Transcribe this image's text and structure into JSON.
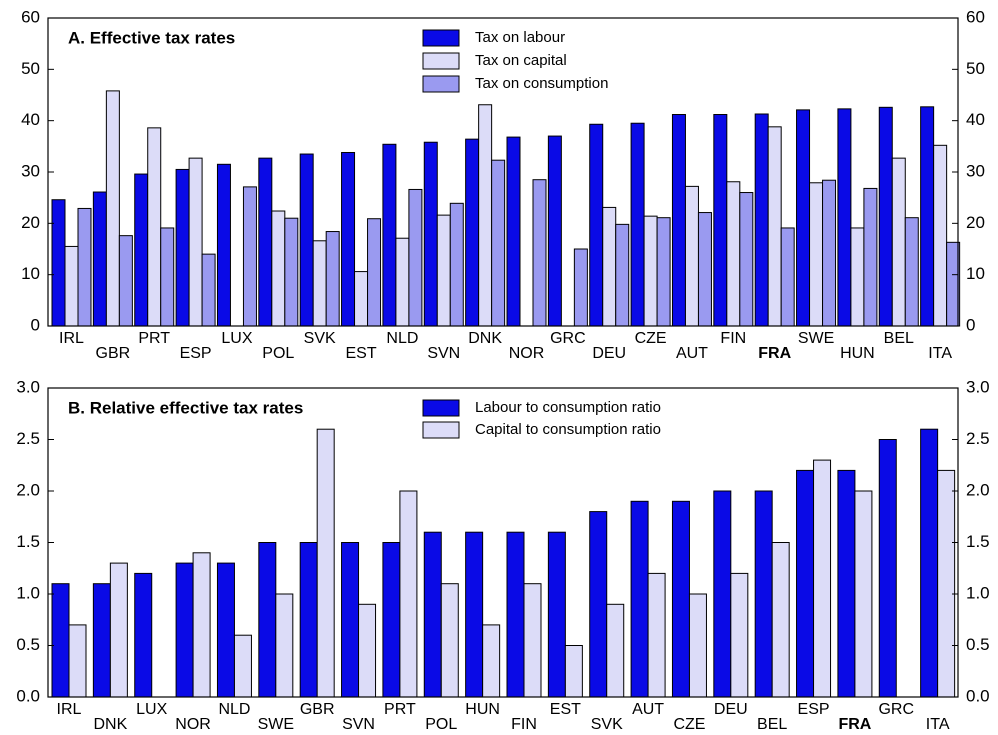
{
  "chart_data": [
    {
      "type": "bar",
      "title": "A. Effective tax rates",
      "categories": [
        "IRL",
        "GBR",
        "PRT",
        "ESP",
        "LUX",
        "POL",
        "SVK",
        "EST",
        "NLD",
        "SVN",
        "DNK",
        "NOR",
        "GRC",
        "DEU",
        "CZE",
        "AUT",
        "FIN",
        "FRA",
        "SWE",
        "HUN",
        "BEL",
        "ITA"
      ],
      "series": [
        {
          "name": "Tax on labour",
          "color": "#0a0ae6",
          "values": [
            24.6,
            26.1,
            29.6,
            30.5,
            31.5,
            32.7,
            33.5,
            33.8,
            35.4,
            35.8,
            36.4,
            36.8,
            37.0,
            39.3,
            39.5,
            41.2,
            41.2,
            41.3,
            42.1,
            42.3,
            42.6,
            42.7
          ]
        },
        {
          "name": "Tax on capital",
          "color": "#dcdcf8",
          "values": [
            15.5,
            45.8,
            38.6,
            32.7,
            null,
            22.4,
            16.6,
            10.6,
            17.1,
            21.6,
            43.1,
            null,
            null,
            23.1,
            21.4,
            27.2,
            28.1,
            38.8,
            27.9,
            19.1,
            32.7,
            35.2
          ]
        },
        {
          "name": "Tax on consumption",
          "color": "#9a9af0",
          "values": [
            22.9,
            17.6,
            19.1,
            14.0,
            27.1,
            21.0,
            18.4,
            20.9,
            26.6,
            23.9,
            32.3,
            28.5,
            15.0,
            19.8,
            21.1,
            22.1,
            26.0,
            19.1,
            28.4,
            26.8,
            21.1,
            16.3
          ]
        }
      ],
      "ylim": [
        0,
        60
      ],
      "yticks": [
        0,
        10,
        20,
        30,
        40,
        50,
        60
      ],
      "bold_categories": [
        "FRA"
      ],
      "legend": "top center",
      "grid": false
    },
    {
      "type": "bar",
      "title": "B. Relative effective tax rates",
      "categories": [
        "IRL",
        "DNK",
        "LUX",
        "NOR",
        "NLD",
        "SWE",
        "GBR",
        "SVN",
        "PRT",
        "POL",
        "HUN",
        "FIN",
        "EST",
        "SVK",
        "AUT",
        "CZE",
        "DEU",
        "BEL",
        "ESP",
        "FRA",
        "GRC",
        "ITA"
      ],
      "series": [
        {
          "name": "Labour to consumption ratio",
          "color": "#0a0ae6",
          "values": [
            1.1,
            1.1,
            1.2,
            1.3,
            1.3,
            1.5,
            1.5,
            1.5,
            1.5,
            1.6,
            1.6,
            1.6,
            1.6,
            1.8,
            1.9,
            1.9,
            2.0,
            2.0,
            2.2,
            2.2,
            2.5,
            2.6
          ]
        },
        {
          "name": "Capital to consumption ratio",
          "color": "#dcdcf8",
          "values": [
            0.7,
            1.3,
            null,
            1.4,
            0.6,
            1.0,
            2.6,
            0.9,
            2.0,
            1.1,
            0.7,
            1.1,
            0.5,
            0.9,
            1.2,
            1.0,
            1.2,
            1.5,
            2.3,
            2.0,
            null,
            2.2
          ]
        }
      ],
      "ylim": [
        0,
        3
      ],
      "yticks": [
        {
          "value": 0,
          "label": "0.0"
        },
        0.5,
        {
          "value": 1,
          "label": "1.0"
        },
        1.5,
        {
          "value": 2,
          "label": "2.0"
        },
        2.5,
        {
          "value": 3,
          "label": "3.0"
        }
      ],
      "bold_categories": [
        "FRA"
      ],
      "legend": "top center",
      "grid": false
    }
  ]
}
